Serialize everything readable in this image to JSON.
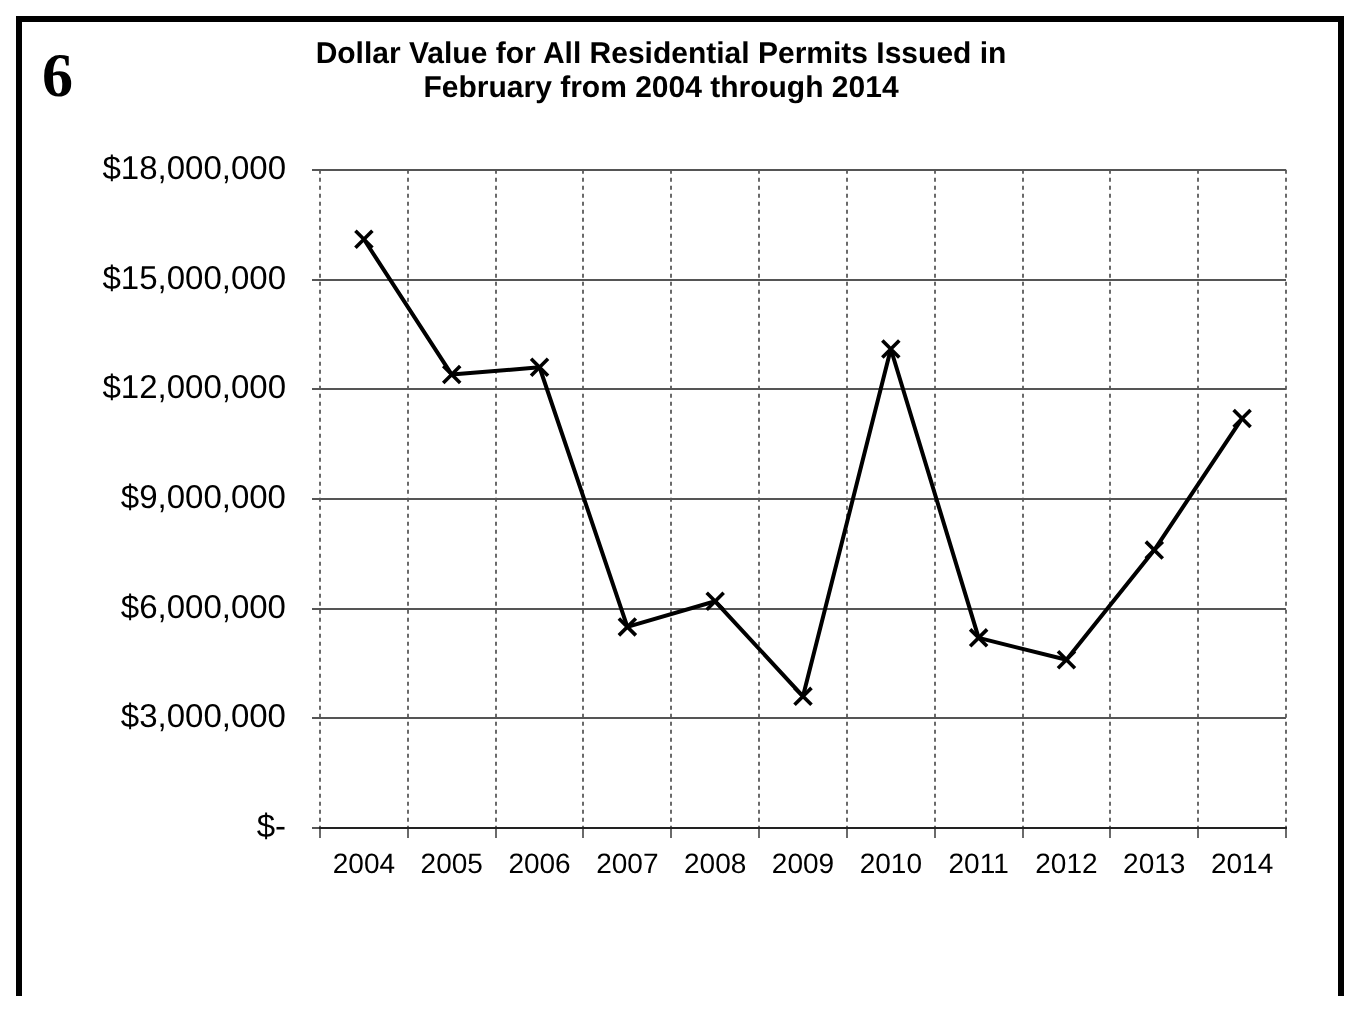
{
  "chart_data": {
    "type": "line",
    "title": "Dollar Value for All Residential Permits Issued in February from 2004 through 2014",
    "annotations": [
      "6"
    ],
    "categories": [
      "2004",
      "2005",
      "2006",
      "2007",
      "2008",
      "2009",
      "2010",
      "2011",
      "2012",
      "2013",
      "2014"
    ],
    "values": [
      16100000,
      12400000,
      12600000,
      5500000,
      6200000,
      3600000,
      13100000,
      5200000,
      4600000,
      7600000,
      11200000
    ],
    "color": "#000000",
    "marker": "cross",
    "grid": true,
    "ylim": [
      0,
      18000000
    ],
    "yticks": [
      {
        "value": 0,
        "label": "$-"
      },
      {
        "value": 3000000,
        "label": "$3,000,000"
      },
      {
        "value": 6000000,
        "label": "$6,000,000"
      },
      {
        "value": 9000000,
        "label": "$9,000,000"
      },
      {
        "value": 12000000,
        "label": "$12,000,000"
      },
      {
        "value": 15000000,
        "label": "$15,000,000"
      },
      {
        "value": 18000000,
        "label": "$18,000,000"
      }
    ]
  }
}
